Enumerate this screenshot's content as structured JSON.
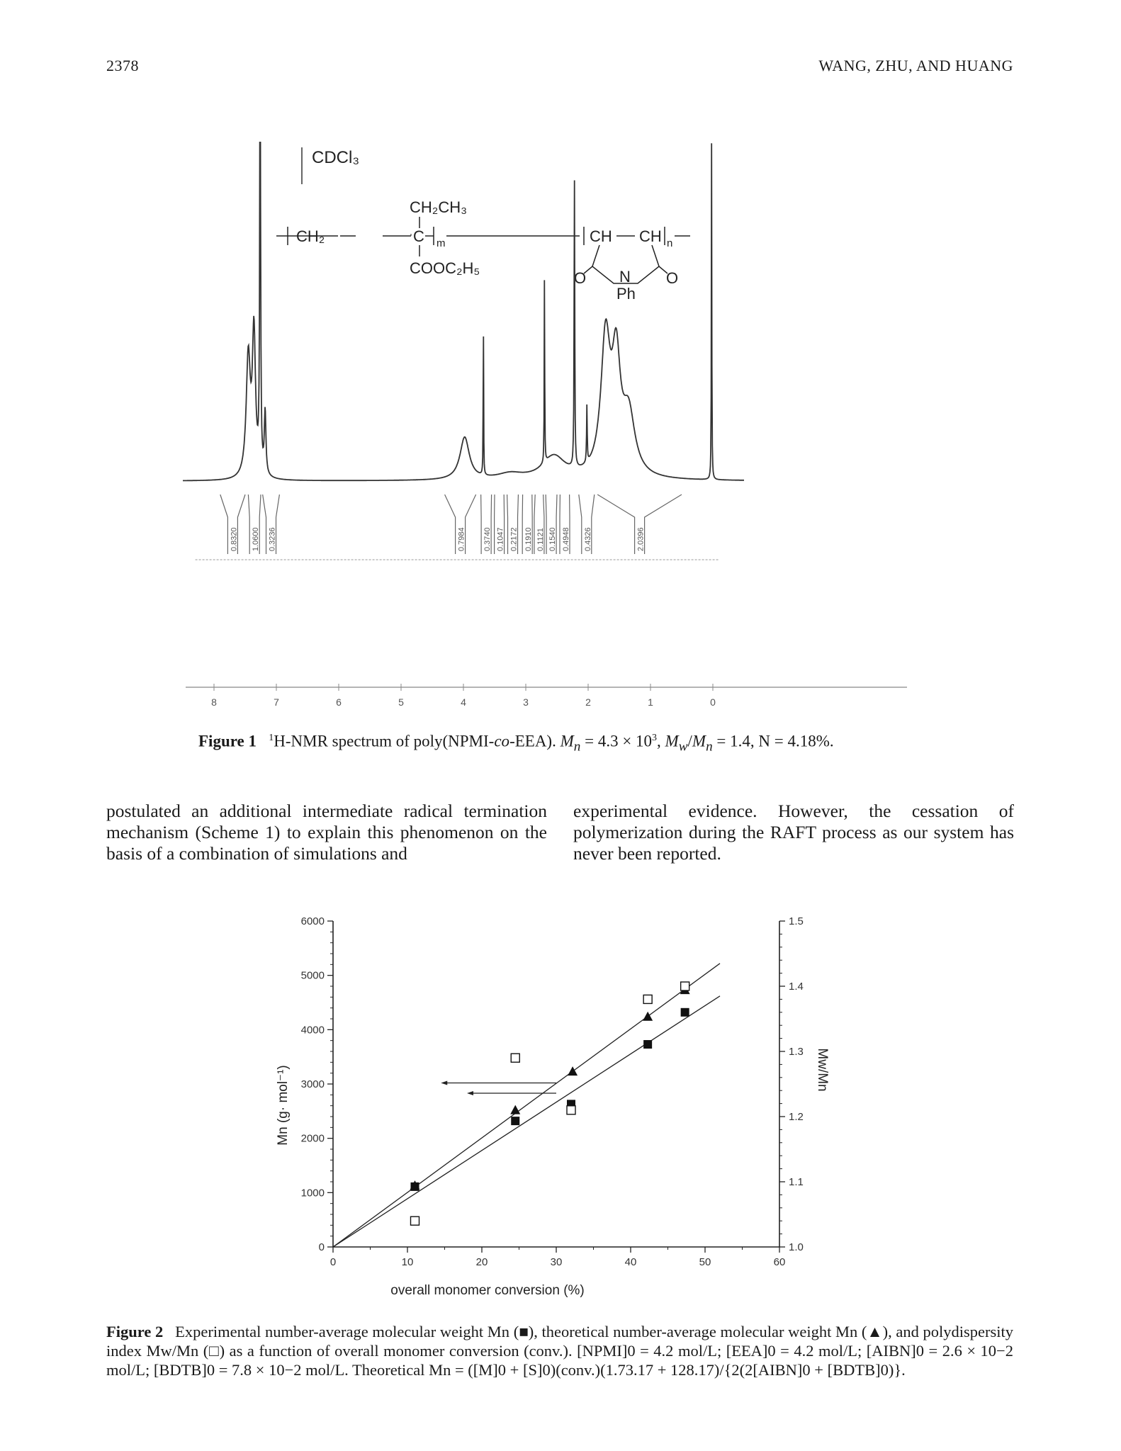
{
  "header": {
    "page_number": "2378",
    "authors": "WANG, ZHU, AND HUANG"
  },
  "figure1": {
    "solvent_label": "CDCl₃",
    "structure": {
      "top": "CH₂CH₃",
      "backbone_left": "CH₂",
      "quaternary_c": "C",
      "sub_m": "m",
      "bottom": "COOC₂H₅",
      "ring_ch_1": "CH",
      "ring_ch_2": "CH",
      "sub_n": "n",
      "oxygen_left": "O",
      "oxygen_right": "O",
      "nitrogen": "N",
      "phenyl": "Ph"
    },
    "x_axis_ticks": [
      {
        "ppm": 8,
        "label": "8"
      },
      {
        "ppm": 7,
        "label": "7"
      },
      {
        "ppm": 6,
        "label": "6"
      },
      {
        "ppm": 5,
        "label": "5"
      },
      {
        "ppm": 4,
        "label": "4"
      },
      {
        "ppm": 3,
        "label": "3"
      },
      {
        "ppm": 2,
        "label": "2"
      },
      {
        "ppm": 1,
        "label": "1"
      },
      {
        "ppm": 0,
        "label": "0"
      }
    ],
    "integrals": [
      "0.8320",
      "1.0600",
      "0.3236",
      "0.7984",
      "0.3740",
      "0.1047",
      "0.2172",
      "0.1910",
      "0.1121",
      "0.1540",
      "0.4948",
      "0.4326",
      "2.0396"
    ],
    "caption": {
      "label": "Figure 1",
      "sup": "1",
      "text_1": "H-NMR spectrum of poly(NPMI-",
      "co": "co",
      "text_2": "-EEA). ",
      "mn": "M",
      "mn_sub": "n",
      "text_3": " = 4.3 × 10",
      "exp": "3",
      "text_4": ", ",
      "mw": "M",
      "mw_sub": "w",
      "slash": "/",
      "mn2": "M",
      "mn2_sub": "n",
      "text_5": " = 1.4, N = 4.18%."
    }
  },
  "body": {
    "left": "postulated an additional intermediate radical termination mechanism (Scheme 1) to explain this phenomenon on the basis of a combination of simulations and",
    "right": "experimental evidence. However, the cessation of polymerization during the RAFT process as our system has never been reported."
  },
  "figure2": {
    "caption": "Experimental number-average molecular weight Mn (■), theoretical number-average molecular weight Mn (▲), and polydispersity index Mw/Mn (□) as a function of overall monomer conversion (conv.). [NPMI]0 = 4.2 mol/L; [EEA]0 = 4.2 mol/L; [AIBN]0 = 2.6 × 10−2 mol/L; [BDTB]0 = 7.8 × 10−2 mol/L. Theoretical Mn = ([M]0 + [S]0)(conv.)(1.73.17 + 128.17)/{2(2[AIBN]0 + [BDTB]0)}.",
    "caption_label": "Figure 2"
  },
  "chart_data": {
    "type": "scatter",
    "title": "",
    "xlabel": "overall monomer conversion (%)",
    "ylabel": "Mn (g· mol⁻¹)",
    "y2label": "Mw/Mn",
    "xlim": [
      0,
      60
    ],
    "ylim": [
      0,
      6000
    ],
    "y2lim": [
      1.0,
      1.5
    ],
    "x_ticks": [
      "0",
      "10",
      "20",
      "30",
      "40",
      "50",
      "60"
    ],
    "y_ticks": [
      "0",
      "1000",
      "2000",
      "3000",
      "4000",
      "5000",
      "6000"
    ],
    "y2_ticks": [
      "1.0",
      "1.1",
      "1.2",
      "1.3",
      "1.4",
      "1.5"
    ],
    "grid": false,
    "series": [
      {
        "marker": "filled-square",
        "axis": "left",
        "x": [
          11.0,
          24.5,
          32.0,
          42.3,
          47.3
        ],
        "y": [
          1110,
          2320,
          2630,
          3730,
          4320
        ]
      },
      {
        "marker": "filled-triangle",
        "axis": "left",
        "x": [
          11.0,
          24.5,
          32.2,
          42.3,
          47.3
        ],
        "y": [
          1120,
          2510,
          3220,
          4230,
          4720
        ]
      },
      {
        "marker": "open-square",
        "axis": "right",
        "x": [
          11.0,
          24.5,
          32.0,
          42.3,
          47.3
        ],
        "y": [
          1.04,
          1.29,
          1.21,
          1.38,
          1.4
        ]
      }
    ],
    "fit_lines": [
      {
        "axis": "left",
        "x": [
          0,
          52
        ],
        "y": [
          0,
          5220
        ]
      },
      {
        "axis": "left",
        "x": [
          0,
          52
        ],
        "y": [
          0,
          4620
        ]
      }
    ],
    "axis_arrows": [
      {
        "x_start": 30,
        "x_end": 14.5,
        "y": 3020
      },
      {
        "x_start": 30,
        "x_end": 18.0,
        "y": 2830
      }
    ]
  }
}
